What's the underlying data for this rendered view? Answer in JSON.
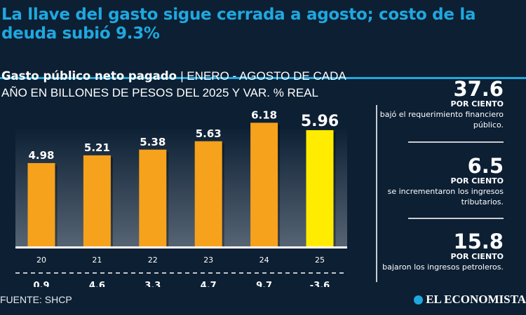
{
  "header": {
    "title": "La llave del gasto sigue cerrada a agosto; costo de la deuda subió 9.3%",
    "accent_color": "#1fa8df"
  },
  "chart_data": {
    "type": "bar",
    "title": "Gasto público neto pagado",
    "subtitle": "ENERO - AGOSTO DE CADA AÑO EN BILLONES DE PESOS DEL 2025 Y VAR. % REAL",
    "categories": [
      "20",
      "21",
      "22",
      "23",
      "24",
      "25"
    ],
    "values": [
      4.98,
      5.21,
      5.38,
      5.63,
      6.18,
      5.96
    ],
    "value_labels": [
      "4.98",
      "5.21",
      "5.38",
      "5.63",
      "6.18",
      "5.96"
    ],
    "real_change_pct": [
      "0.9",
      "4.6",
      "3.3",
      "4.7",
      "9.7",
      "-3.6"
    ],
    "ylim": [
      2.5,
      6.5
    ],
    "grid": false,
    "bar_color": "#f6a21c",
    "highlight_color": "#ffec00",
    "highlight_index": 5
  },
  "stats": [
    {
      "value": "37.6",
      "unit": "POR CIENTO",
      "text": "bajó el requerimiento financiero público."
    },
    {
      "value": "6.5",
      "unit": "POR CIENTO",
      "text": "se incrementaron los ingresos tributarios."
    },
    {
      "value": "15.8",
      "unit": "POR CIENTO",
      "text": "bajaron los ingresos petroleros."
    }
  ],
  "footer": {
    "source": "FUENTE: SHCP",
    "logo": "EL ECONOMISTA"
  }
}
